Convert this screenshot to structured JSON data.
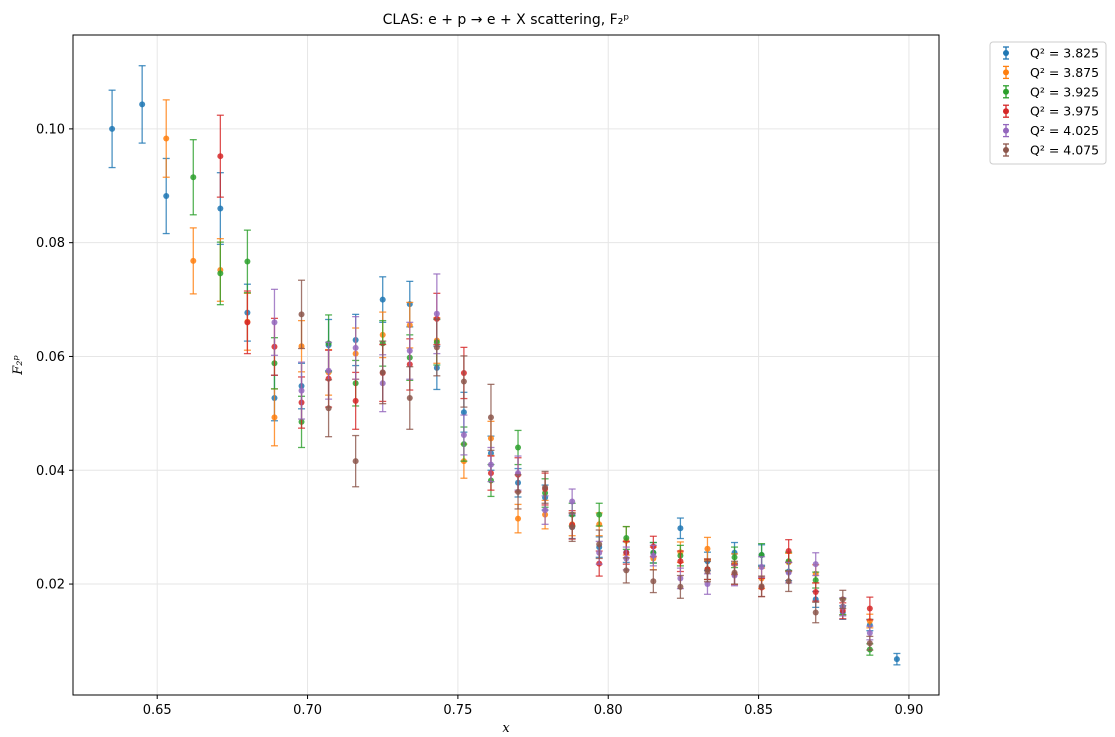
{
  "chart_data": {
    "type": "scatter",
    "title": "CLAS: e + p → e + X scattering, F₂ᵖ",
    "xlabel": "x",
    "ylabel": "F₂ᵖ",
    "xlim": [
      0.622,
      0.91
    ],
    "ylim": [
      0.0005,
      0.1165
    ],
    "xticks": [
      0.65,
      0.7,
      0.75,
      0.8,
      0.85,
      0.9
    ],
    "xtick_labels": [
      "0.65",
      "0.70",
      "0.75",
      "0.80",
      "0.85",
      "0.90"
    ],
    "yticks": [
      0.02,
      0.04,
      0.06,
      0.08,
      0.1
    ],
    "ytick_labels": [
      "0.02",
      "0.04",
      "0.06",
      "0.08",
      "0.10"
    ],
    "grid": true,
    "legend_position": "outside-top-right",
    "error_bars": true,
    "series": [
      {
        "name": "Q² = 3.825",
        "color": "#1f77b4",
        "points": [
          [
            0.635,
            0.1,
            0.0068
          ],
          [
            0.645,
            0.1043,
            0.0068
          ],
          [
            0.653,
            0.0882,
            0.0066
          ],
          [
            0.671,
            0.086,
            0.0063
          ],
          [
            0.68,
            0.0677,
            0.005
          ],
          [
            0.689,
            0.0527,
            0.004
          ],
          [
            0.698,
            0.0548,
            0.004
          ],
          [
            0.707,
            0.062,
            0.0045
          ],
          [
            0.716,
            0.0629,
            0.0045
          ],
          [
            0.725,
            0.07,
            0.004
          ],
          [
            0.734,
            0.0692,
            0.004
          ],
          [
            0.743,
            0.058,
            0.0038
          ],
          [
            0.752,
            0.0502,
            0.0035
          ],
          [
            0.761,
            0.043,
            0.003
          ],
          [
            0.77,
            0.0378,
            0.0025
          ],
          [
            0.779,
            0.0352,
            0.0022
          ],
          [
            0.788,
            0.03,
            0.002
          ],
          [
            0.797,
            0.0265,
            0.0018
          ],
          [
            0.806,
            0.0256,
            0.0018
          ],
          [
            0.815,
            0.0255,
            0.0018
          ],
          [
            0.824,
            0.0298,
            0.0018
          ],
          [
            0.833,
            0.024,
            0.0016
          ],
          [
            0.842,
            0.0255,
            0.0018
          ],
          [
            0.851,
            0.0251,
            0.0018
          ],
          [
            0.86,
            0.0222,
            0.0016
          ],
          [
            0.869,
            0.0173,
            0.0014
          ],
          [
            0.878,
            0.015,
            0.0012
          ],
          [
            0.887,
            0.0128,
            0.001
          ],
          [
            0.896,
            0.0068,
            0.001
          ]
        ]
      },
      {
        "name": "Q² = 3.875",
        "color": "#ff7f0e",
        "points": [
          [
            0.653,
            0.0983,
            0.0068
          ],
          [
            0.662,
            0.0768,
            0.0058
          ],
          [
            0.671,
            0.0752,
            0.0055
          ],
          [
            0.68,
            0.0661,
            0.005
          ],
          [
            0.689,
            0.0493,
            0.005
          ],
          [
            0.698,
            0.0618,
            0.0045
          ],
          [
            0.707,
            0.0572,
            0.004
          ],
          [
            0.716,
            0.0605,
            0.0045
          ],
          [
            0.725,
            0.0638,
            0.004
          ],
          [
            0.734,
            0.0655,
            0.004
          ],
          [
            0.743,
            0.0628,
            0.004
          ],
          [
            0.752,
            0.0416,
            0.003
          ],
          [
            0.761,
            0.0456,
            0.003
          ],
          [
            0.77,
            0.0315,
            0.0025
          ],
          [
            0.779,
            0.0322,
            0.0025
          ],
          [
            0.788,
            0.0305,
            0.002
          ],
          [
            0.797,
            0.0305,
            0.002
          ],
          [
            0.806,
            0.0276,
            0.0025
          ],
          [
            0.815,
            0.0245,
            0.002
          ],
          [
            0.824,
            0.0256,
            0.0018
          ],
          [
            0.833,
            0.0262,
            0.002
          ],
          [
            0.842,
            0.0235,
            0.0018
          ],
          [
            0.851,
            0.021,
            0.0018
          ],
          [
            0.86,
            0.0238,
            0.0016
          ],
          [
            0.869,
            0.0218,
            0.0016
          ],
          [
            0.878,
            0.016,
            0.0014
          ],
          [
            0.887,
            0.0135,
            0.0012
          ]
        ]
      },
      {
        "name": "Q² = 3.925",
        "color": "#2ca02c",
        "points": [
          [
            0.662,
            0.0915,
            0.0066
          ],
          [
            0.671,
            0.0746,
            0.0055
          ],
          [
            0.68,
            0.0767,
            0.0055
          ],
          [
            0.689,
            0.0588,
            0.0045
          ],
          [
            0.698,
            0.0485,
            0.0045
          ],
          [
            0.707,
            0.0623,
            0.005
          ],
          [
            0.716,
            0.0553,
            0.004
          ],
          [
            0.725,
            0.0623,
            0.004
          ],
          [
            0.734,
            0.0598,
            0.004
          ],
          [
            0.743,
            0.0625,
            0.004
          ],
          [
            0.752,
            0.0446,
            0.003
          ],
          [
            0.761,
            0.0382,
            0.0028
          ],
          [
            0.77,
            0.044,
            0.003
          ],
          [
            0.779,
            0.036,
            0.0025
          ],
          [
            0.788,
            0.0322,
            0.002
          ],
          [
            0.797,
            0.0322,
            0.002
          ],
          [
            0.806,
            0.0281,
            0.002
          ],
          [
            0.815,
            0.0255,
            0.0018
          ],
          [
            0.824,
            0.025,
            0.0018
          ],
          [
            0.833,
            0.0226,
            0.0018
          ],
          [
            0.842,
            0.0247,
            0.0018
          ],
          [
            0.851,
            0.0251,
            0.002
          ],
          [
            0.86,
            0.024,
            0.0016
          ],
          [
            0.869,
            0.0207,
            0.0014
          ],
          [
            0.878,
            0.016,
            0.0014
          ],
          [
            0.887,
            0.0085,
            0.001
          ]
        ]
      },
      {
        "name": "Q² = 3.975",
        "color": "#d62728",
        "points": [
          [
            0.671,
            0.0952,
            0.0072
          ],
          [
            0.68,
            0.066,
            0.0055
          ],
          [
            0.689,
            0.0617,
            0.005
          ],
          [
            0.698,
            0.0519,
            0.0045
          ],
          [
            0.707,
            0.0561,
            0.005
          ],
          [
            0.716,
            0.0522,
            0.005
          ],
          [
            0.725,
            0.0571,
            0.005
          ],
          [
            0.734,
            0.0586,
            0.0045
          ],
          [
            0.743,
            0.0666,
            0.0045
          ],
          [
            0.752,
            0.0571,
            0.0045
          ],
          [
            0.761,
            0.0395,
            0.003
          ],
          [
            0.77,
            0.0392,
            0.003
          ],
          [
            0.779,
            0.0367,
            0.0028
          ],
          [
            0.788,
            0.0304,
            0.0025
          ],
          [
            0.797,
            0.0236,
            0.0022
          ],
          [
            0.806,
            0.0255,
            0.002
          ],
          [
            0.815,
            0.0266,
            0.0018
          ],
          [
            0.824,
            0.024,
            0.0018
          ],
          [
            0.833,
            0.0226,
            0.0018
          ],
          [
            0.842,
            0.0217,
            0.0018
          ],
          [
            0.851,
            0.0194,
            0.0016
          ],
          [
            0.86,
            0.0258,
            0.002
          ],
          [
            0.869,
            0.0186,
            0.0016
          ],
          [
            0.878,
            0.0153,
            0.0014
          ],
          [
            0.887,
            0.0157,
            0.002
          ]
        ]
      },
      {
        "name": "Q² = 4.025",
        "color": "#9467bd",
        "points": [
          [
            0.689,
            0.066,
            0.0058
          ],
          [
            0.698,
            0.054,
            0.005
          ],
          [
            0.707,
            0.0575,
            0.005
          ],
          [
            0.716,
            0.0615,
            0.0055
          ],
          [
            0.725,
            0.0553,
            0.005
          ],
          [
            0.734,
            0.061,
            0.005
          ],
          [
            0.743,
            0.0675,
            0.007
          ],
          [
            0.752,
            0.0462,
            0.0035
          ],
          [
            0.761,
            0.041,
            0.003
          ],
          [
            0.77,
            0.0395,
            0.003
          ],
          [
            0.779,
            0.033,
            0.0025
          ],
          [
            0.788,
            0.0345,
            0.0022
          ],
          [
            0.797,
            0.0255,
            0.002
          ],
          [
            0.806,
            0.0245,
            0.002
          ],
          [
            0.815,
            0.025,
            0.0018
          ],
          [
            0.824,
            0.021,
            0.0018
          ],
          [
            0.833,
            0.02,
            0.0018
          ],
          [
            0.842,
            0.0215,
            0.0018
          ],
          [
            0.851,
            0.023,
            0.0018
          ],
          [
            0.86,
            0.022,
            0.0018
          ],
          [
            0.869,
            0.0235,
            0.002
          ],
          [
            0.878,
            0.016,
            0.0016
          ],
          [
            0.887,
            0.0114,
            0.0012
          ]
        ]
      },
      {
        "name": "Q² = 4.075",
        "color": "#8c564b",
        "points": [
          [
            0.698,
            0.0674,
            0.006
          ],
          [
            0.707,
            0.0509,
            0.005
          ],
          [
            0.716,
            0.0416,
            0.0045
          ],
          [
            0.725,
            0.0572,
            0.0055
          ],
          [
            0.734,
            0.0527,
            0.0055
          ],
          [
            0.743,
            0.0616,
            0.005
          ],
          [
            0.752,
            0.0556,
            0.0045
          ],
          [
            0.761,
            0.0493,
            0.0058
          ],
          [
            0.77,
            0.0362,
            0.003
          ],
          [
            0.779,
            0.037,
            0.0028
          ],
          [
            0.788,
            0.03,
            0.0025
          ],
          [
            0.797,
            0.027,
            0.0025
          ],
          [
            0.806,
            0.0224,
            0.0022
          ],
          [
            0.815,
            0.0205,
            0.002
          ],
          [
            0.824,
            0.0195,
            0.002
          ],
          [
            0.833,
            0.0222,
            0.0018
          ],
          [
            0.842,
            0.022,
            0.002
          ],
          [
            0.851,
            0.0196,
            0.0018
          ],
          [
            0.86,
            0.0205,
            0.0018
          ],
          [
            0.869,
            0.015,
            0.0018
          ],
          [
            0.878,
            0.0173,
            0.0016
          ],
          [
            0.887,
            0.0096,
            0.0012
          ]
        ]
      }
    ]
  }
}
